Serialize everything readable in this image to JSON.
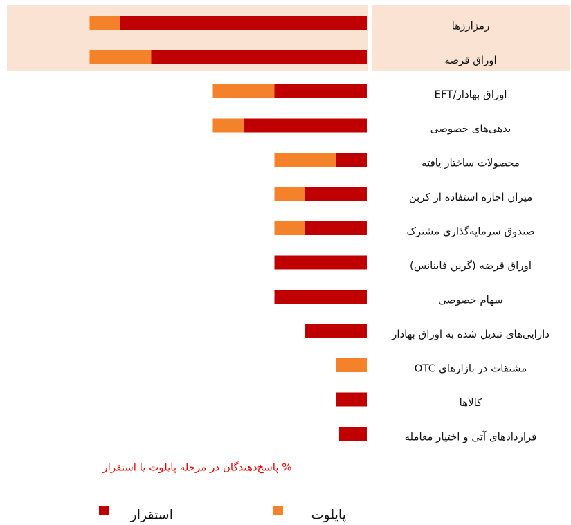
{
  "chart_data": {
    "type": "bar",
    "orientation": "horizontal",
    "stacked": true,
    "categories": [
      "رمزارزها",
      "اوراق قرضه",
      "EFT/اوراق بهادار",
      "بدهی‌های خصوصی",
      "محصولات ساختار یافته",
      "میزان اجازه استفاده از کربن",
      "صندوق سرمایه‌گذاری مشترک",
      "اوراق قرضه (گرین فاینانس)",
      "سهام خصوصی",
      "دارایی‌های تبدیل شده به اوراق بهادار",
      "مشتقات در بازارهای OTC",
      "کالاها",
      "قراردادهای آتی و اختیار معامله"
    ],
    "series": [
      {
        "name": "استقرار",
        "color": "#c00000",
        "values": [
          40,
          35,
          15,
          20,
          5,
          10,
          10,
          15,
          15,
          10,
          0,
          5,
          4.5
        ]
      },
      {
        "name": "پایلوت",
        "color": "#f4822a",
        "values": [
          5,
          10,
          10,
          5,
          10,
          5,
          5,
          0,
          0,
          0,
          5,
          0,
          0
        ]
      }
    ],
    "note": "% پاسخ‌دهندگان در مرحله پایلوت یا استقرار",
    "highlight_color": "#fbe3d3"
  }
}
